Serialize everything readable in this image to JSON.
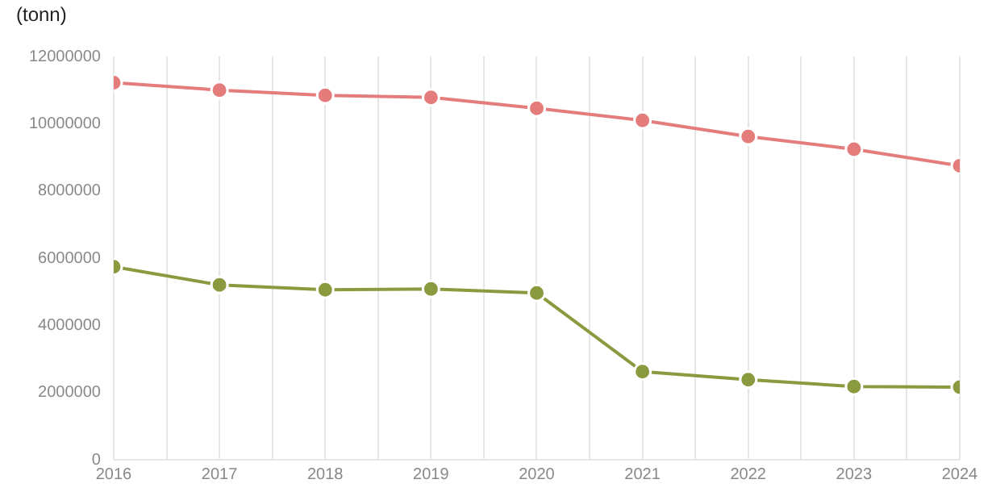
{
  "chart_data": {
    "type": "line",
    "ylabel": "(tonn)",
    "x": [
      2016,
      2017,
      2018,
      2019,
      2020,
      2021,
      2022,
      2023,
      2024
    ],
    "xlim": [
      2016,
      2024
    ],
    "xticks": [
      2016,
      {
        "value": 2016.5,
        "label": null
      },
      2017,
      {
        "value": 2017.5,
        "label": null
      },
      2018,
      {
        "value": 2018.5,
        "label": null
      },
      2019,
      {
        "value": 2019.5,
        "label": null
      },
      2020,
      {
        "value": 2020.5,
        "label": null
      },
      2021,
      {
        "value": 2021.5,
        "label": null
      },
      2022,
      {
        "value": 2022.5,
        "label": null
      },
      2023,
      {
        "value": 2023.5,
        "label": null
      },
      2024
    ],
    "ylim": [
      0,
      12000000
    ],
    "yticks": [
      0,
      2000000,
      4000000,
      6000000,
      8000000,
      10000000,
      12000000
    ],
    "series": [
      {
        "color": "#e57c7c",
        "values": [
          11220000,
          11000000,
          10840000,
          10780000,
          10460000,
          10100000,
          9620000,
          9240000,
          8750000
        ]
      },
      {
        "color": "#8a9a3f",
        "values": [
          5740000,
          5200000,
          5060000,
          5080000,
          4960000,
          2620000,
          2380000,
          2180000,
          2160000
        ]
      }
    ],
    "grid": "x",
    "legend": false,
    "marker": "circle",
    "line_style": "solid"
  }
}
